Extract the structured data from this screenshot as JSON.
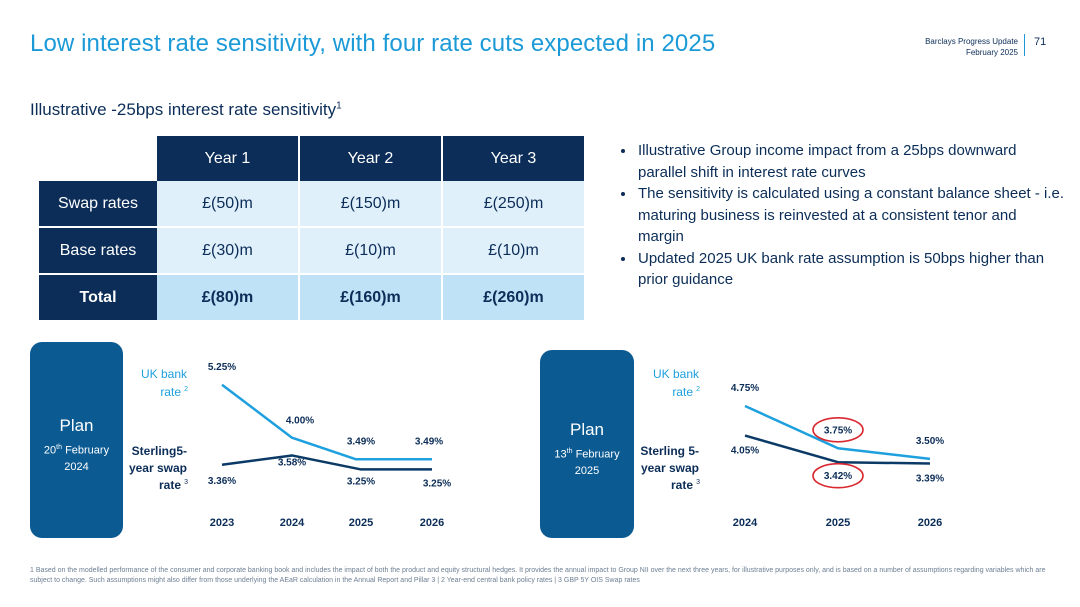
{
  "header": {
    "title": "Low interest rate sensitivity, with four rate cuts expected in 2025",
    "doc_name": "Barclays Progress Update",
    "doc_date": "February 2025",
    "page_number": "71"
  },
  "subtitle": "Illustrative -25bps interest rate sensitivity",
  "subtitle_sup": "1",
  "table": {
    "columns": [
      "Year 1",
      "Year 2",
      "Year 3"
    ],
    "rows": [
      {
        "label": "Swap rates",
        "values": [
          "£(50)m",
          "£(150)m",
          "£(250)m"
        ]
      },
      {
        "label": "Base rates",
        "values": [
          "£(30)m",
          "£(10)m",
          "£(10)m"
        ]
      },
      {
        "label": "Total",
        "values": [
          "£(80)m",
          "£(160)m",
          "£(260)m"
        ]
      }
    ]
  },
  "bullets": [
    "Illustrative Group income impact from a 25bps downward parallel shift in interest rate curves",
    "The sensitivity is calculated using a constant balance sheet - i.e. maturing business is reinvested at a consistent tenor and margin",
    "Updated 2025 UK bank rate assumption is 50bps higher than prior guidance"
  ],
  "plans": [
    {
      "title": "Plan",
      "day": "20",
      "suffix": "th",
      "month": "February",
      "year": "2024"
    },
    {
      "title": "Plan",
      "day": "13",
      "suffix": "th",
      "month": "February",
      "year": "2025"
    }
  ],
  "chart_data": [
    {
      "type": "line",
      "categories": [
        "2023",
        "2024",
        "2025",
        "2026"
      ],
      "series": [
        {
          "name": "UK bank rate",
          "legend_lines": [
            "UK bank",
            "rate"
          ],
          "sup": "2",
          "color": "#1ea0de",
          "values": [
            5.25,
            4.0,
            3.49,
            3.49
          ],
          "labels": [
            "5.25%",
            "4.00%",
            "3.49%",
            "3.49%"
          ]
        },
        {
          "name": "Sterling5-year swap rate",
          "legend_lines": [
            "Sterling5-",
            "year swap",
            "rate"
          ],
          "sup": "3",
          "color": "#0b3a66",
          "values": [
            3.36,
            3.58,
            3.25,
            3.25
          ],
          "labels": [
            "3.36%",
            "3.58%",
            "3.25%",
            "3.25%"
          ]
        }
      ],
      "ylim": [
        2.5,
        5.5
      ]
    },
    {
      "type": "line",
      "categories": [
        "2024",
        "2025",
        "2026"
      ],
      "series": [
        {
          "name": "UK bank rate",
          "legend_lines": [
            "UK bank",
            "rate"
          ],
          "sup": "2",
          "color": "#1ea0de",
          "values": [
            4.75,
            3.75,
            3.5
          ],
          "labels": [
            "4.75%",
            "3.75%",
            "3.50%"
          ]
        },
        {
          "name": "Sterling 5-year swap rate",
          "legend_lines": [
            "Sterling 5-",
            "year swap",
            "rate"
          ],
          "sup": "3",
          "color": "#0b3a66",
          "values": [
            4.05,
            3.42,
            3.39
          ],
          "labels": [
            "4.05%",
            "3.42%",
            "3.39%"
          ]
        }
      ],
      "highlighted_labels": [
        "3.75%",
        "3.42%"
      ],
      "highlight_color": "#d9282f",
      "ylim": [
        2.5,
        5.5
      ]
    }
  ],
  "footnote": "1 Based on the modelled performance of the consumer and corporate banking book and includes the impact of both the product and equity structural hedges. It provides the annual impact to Group NII over the next three years, for illustrative purposes only, and is based on a number of assumptions regarding variables which are subject to change. Such assumptions might also differ from those underlying the AEaR calculation in the Annual Report and Pillar 3 | 2 Year-end central bank policy rates | 3 GBP 5Y OIS Swap rates"
}
